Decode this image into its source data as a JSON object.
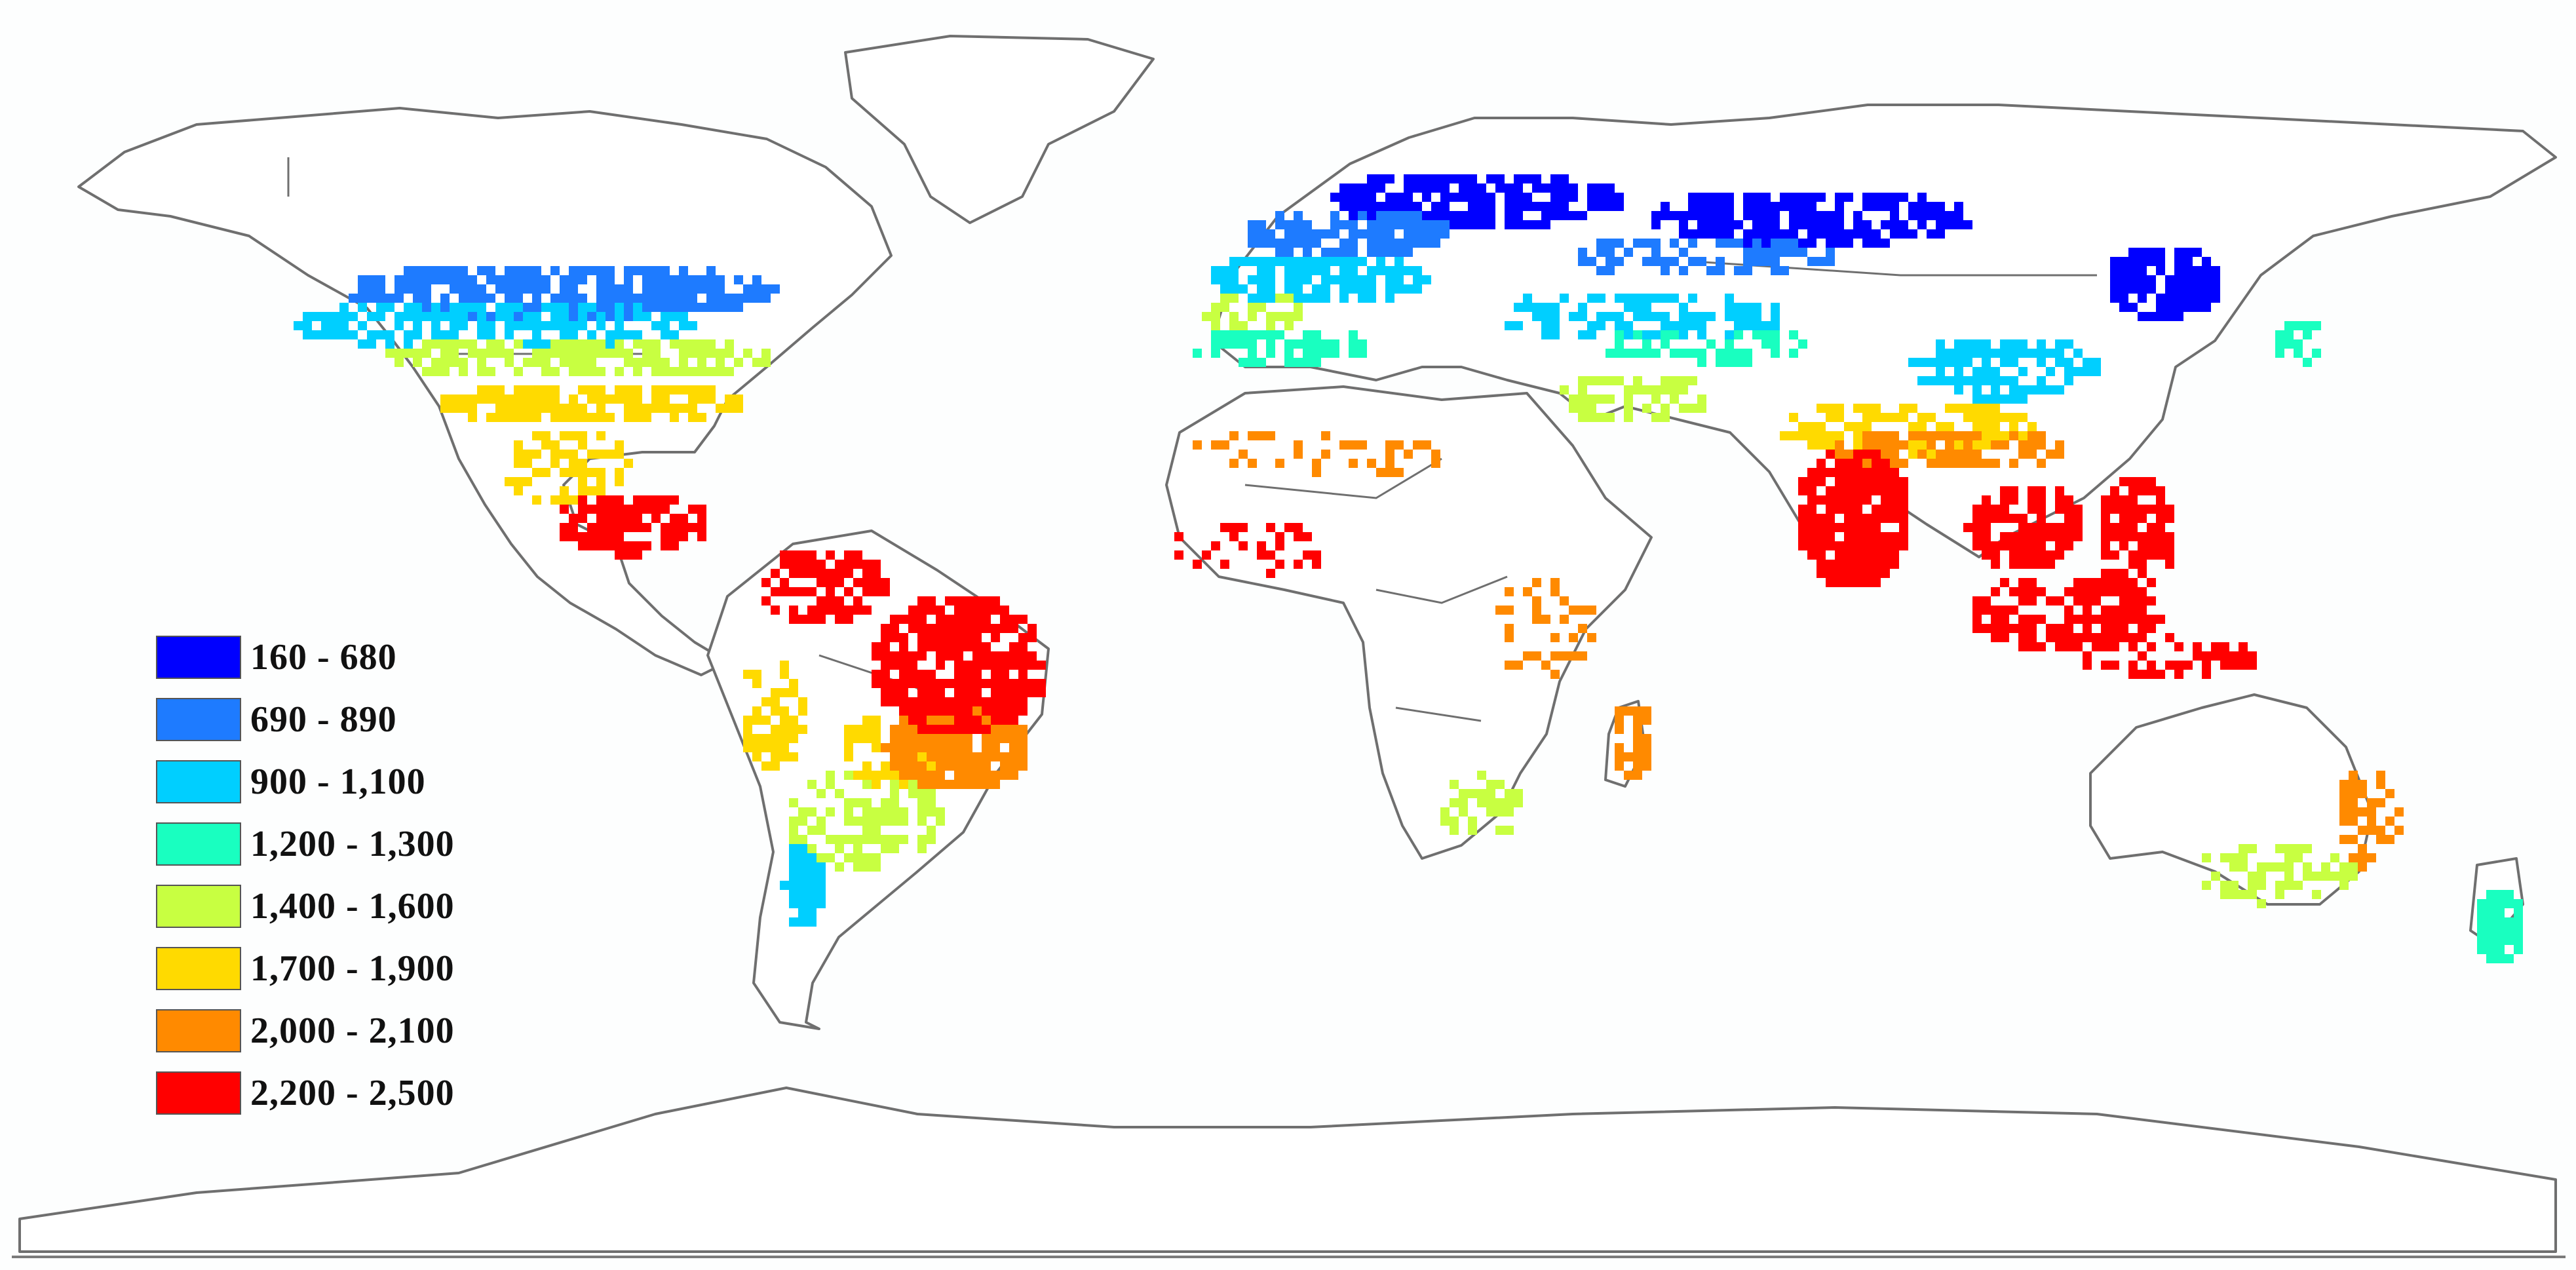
{
  "legend": {
    "items": [
      {
        "label": "160 - 680",
        "color": "#0000ff"
      },
      {
        "label": "690 - 890",
        "color": "#1e7bff"
      },
      {
        "label": "900 - 1,100",
        "color": "#00cfff"
      },
      {
        "label": "1,200 - 1,300",
        "color": "#19ffc0"
      },
      {
        "label": "1,400 - 1,600",
        "color": "#c8ff41"
      },
      {
        "label": "1,700 - 1,900",
        "color": "#ffda00"
      },
      {
        "label": "2,000 - 2,100",
        "color": "#ff8a00"
      },
      {
        "label": "2,200 - 2,500",
        "color": "#ff0000"
      }
    ]
  },
  "colors": {
    "background": "#fdfefe",
    "outline": "#6f6f6f",
    "land": "#ffffff"
  }
}
